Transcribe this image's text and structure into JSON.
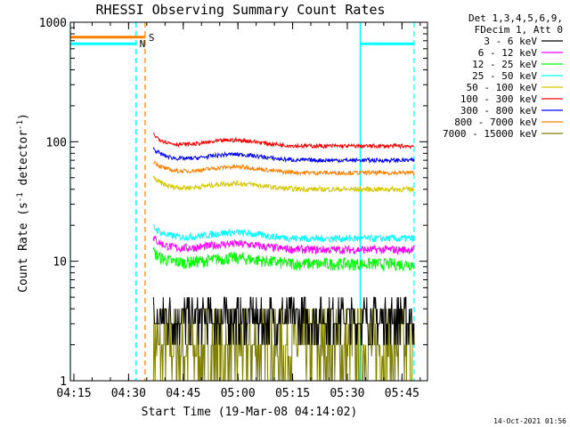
{
  "chart_data": {
    "type": "line",
    "title": "RHESSI Observing Summary Count Rates",
    "xlabel": "Start Time (19-Mar-08 04:14:02)",
    "ylabel_main": "Count Rate (s",
    "ylabel_sup1": "-1",
    "ylabel_mid": " detector",
    "ylabel_sup2": "-1",
    "ylabel_end": ")",
    "yscale": "log",
    "ylim": [
      1,
      1000
    ],
    "xlim": [
      "04:14:02",
      "05:52:00"
    ],
    "x_ticks": [
      "04:15",
      "04:30",
      "04:45",
      "05:00",
      "05:15",
      "05:30",
      "05:45"
    ],
    "x_tick_minutes": [
      0.97,
      15.97,
      30.97,
      45.97,
      60.97,
      75.97,
      90.97
    ],
    "y_ticks": [
      "1",
      "10",
      "100",
      "1000"
    ],
    "y_tick_values": [
      1,
      10,
      100,
      1000
    ],
    "grid": false,
    "legend_position": "right",
    "legend_header": [
      "Det 1,3,4,5,6,9,",
      "FDecim 1, Att 0"
    ],
    "series": [
      {
        "name": "3 - 6 keV",
        "color": "#000000",
        "level": 3.2,
        "noise": 0.35,
        "start_min": 22.8,
        "end_min": 94.3
      },
      {
        "name": "6 - 12 keV",
        "color": "#ff00ff",
        "level": 12.5,
        "noise": 0.08,
        "start_min": 22.8,
        "end_min": 94.3
      },
      {
        "name": "12 - 25 keV",
        "color": "#00ff00",
        "level": 9.5,
        "noise": 0.12,
        "start_min": 22.8,
        "end_min": 94.3
      },
      {
        "name": "25 - 50 keV",
        "color": "#00ffff",
        "level": 15.5,
        "noise": 0.07,
        "start_min": 22.8,
        "end_min": 94.3
      },
      {
        "name": "50 - 100 keV",
        "color": "#d4c800",
        "level": 40,
        "noise": 0.05,
        "start_min": 22.8,
        "end_min": 94.3
      },
      {
        "name": "100 - 300 keV",
        "color": "#ff0000",
        "level": 92,
        "noise": 0.04,
        "start_min": 22.8,
        "end_min": 94.3
      },
      {
        "name": "300 - 800 keV",
        "color": "#0000ff",
        "level": 70,
        "noise": 0.04,
        "start_min": 22.8,
        "end_min": 94.3
      },
      {
        "name": "800 - 7000 keV",
        "color": "#ff8000",
        "level": 55,
        "noise": 0.04,
        "start_min": 22.8,
        "end_min": 94.3
      },
      {
        "name": "7000 - 15000 keV",
        "color": "#808000",
        "level": 1.8,
        "noise": 0.5,
        "start_min": 22.8,
        "end_min": 94.3
      }
    ],
    "flags": [
      {
        "label": "S",
        "color": "#ff8000",
        "value": 750,
        "start_min": 0.0,
        "end_min": 20.5
      },
      {
        "label": "N",
        "color": "#00ffff",
        "value": 660,
        "start_min": 0.0,
        "end_min": 18.0
      },
      {
        "label": "",
        "color": "#00ffff",
        "value": 660,
        "start_min": 79.5,
        "end_min": 94.3
      }
    ],
    "vlines": [
      {
        "color": "#00ffff",
        "style": "solid",
        "minute": 0.0
      },
      {
        "color": "#00ffff",
        "style": "dashed",
        "minute": 18.0
      },
      {
        "color": "#ff8000",
        "style": "dashed",
        "minute": 20.5
      },
      {
        "color": "#00ffff",
        "style": "solid",
        "minute": 79.5
      },
      {
        "color": "#00ffff",
        "style": "dashed",
        "minute": 94.3
      }
    ],
    "timestamp": "14-Oct-2021 01:56"
  }
}
